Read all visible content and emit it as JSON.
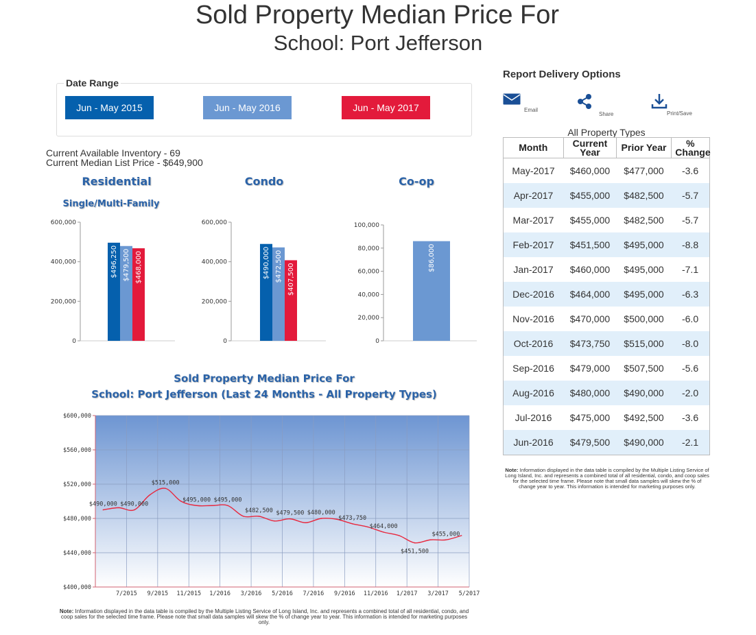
{
  "header": {
    "title": "Sold Property Median Price For",
    "subtitle": "School: Port Jefferson"
  },
  "date_range": {
    "label": "Date Range",
    "buttons": [
      {
        "label": "Jun - May 2015",
        "color": "#0560ad"
      },
      {
        "label": "Jun - May 2016",
        "color": "#6b98d2"
      },
      {
        "label": "Jun - May 2017",
        "color": "#e31a3b"
      }
    ]
  },
  "inventory": {
    "available": "Current Available Inventory - 69",
    "median_list": "Current Median List Price - $649,900"
  },
  "colors": {
    "y2015": "#0560ad",
    "y2016": "#6b98d2",
    "y2017": "#e31a3b",
    "title_blue": "#2b63a8"
  },
  "report_delivery": {
    "title": "Report Delivery Options",
    "options": [
      {
        "label": "Email",
        "icon": "envelope-icon"
      },
      {
        "label": "Share",
        "icon": "share-icon"
      },
      {
        "label": "Print/Save",
        "icon": "download-icon"
      }
    ]
  },
  "table": {
    "caption": "All Property Types",
    "headers": [
      "Month",
      "Current Year",
      "Prior Year",
      "% Change"
    ],
    "rows": [
      [
        "May-2017",
        "$460,000",
        "$477,000",
        "-3.6"
      ],
      [
        "Apr-2017",
        "$455,000",
        "$482,500",
        "-5.7"
      ],
      [
        "Mar-2017",
        "$455,000",
        "$482,500",
        "-5.7"
      ],
      [
        "Feb-2017",
        "$451,500",
        "$495,000",
        "-8.8"
      ],
      [
        "Jan-2017",
        "$460,000",
        "$495,000",
        "-7.1"
      ],
      [
        "Dec-2016",
        "$464,000",
        "$495,000",
        "-6.3"
      ],
      [
        "Nov-2016",
        "$470,000",
        "$500,000",
        "-6.0"
      ],
      [
        "Oct-2016",
        "$473,750",
        "$515,000",
        "-8.0"
      ],
      [
        "Sep-2016",
        "$479,000",
        "$507,500",
        "-5.6"
      ],
      [
        "Aug-2016",
        "$480,000",
        "$490,000",
        "-2.0"
      ],
      [
        "Jul-2016",
        "$475,000",
        "$492,500",
        "-3.6"
      ],
      [
        "Jun-2016",
        "$479,500",
        "$490,000",
        "-2.1"
      ]
    ],
    "note_bold": "Note:",
    "note": "Information displayed in the data table is compiled by the Multiple Listing Service of Long Island, Inc. and represents a combined total of all residential, condo, and coop sales for the selected time frame. Please note that small data samples will skew the % of change year to year.  This information is intended for marketing purposes only."
  },
  "bottom_note": {
    "bold": "Note:",
    "text": "Information displayed in the data table is compiled by the Multiple Listing Service of Long Island, Inc. and represents a combined total of all residential, condo, and coop sales for the selected time frame.  Please note that small data samples will skew the % of change year to year.  This information is intended for marketing purposes only."
  },
  "chart_data": [
    {
      "type": "bar",
      "title": "Residential",
      "subtitle": "Single/Multi-Family",
      "ylim": [
        0,
        600000
      ],
      "ticks": [
        0,
        200000,
        400000,
        600000
      ],
      "tick_labels": [
        "0",
        "200,000",
        "400,000",
        "600,000"
      ],
      "series": [
        {
          "name": "Jun - May 2015",
          "value": 496250,
          "label": "$496,250"
        },
        {
          "name": "Jun - May 2016",
          "value": 479500,
          "label": "$479,500"
        },
        {
          "name": "Jun - May 2017",
          "value": 468000,
          "label": "$468,000"
        }
      ]
    },
    {
      "type": "bar",
      "title": "Condo",
      "subtitle": "",
      "ylim": [
        0,
        600000
      ],
      "ticks": [
        0,
        200000,
        400000,
        600000
      ],
      "tick_labels": [
        "0",
        "200,000",
        "400,000",
        "600,000"
      ],
      "series": [
        {
          "name": "Jun - May 2015",
          "value": 490000,
          "label": "$490,000"
        },
        {
          "name": "Jun - May 2016",
          "value": 472500,
          "label": "$472,500"
        },
        {
          "name": "Jun - May 2017",
          "value": 407500,
          "label": "$407,500"
        }
      ]
    },
    {
      "type": "bar",
      "title": "Co-op",
      "subtitle": "",
      "ylim": [
        0,
        100000
      ],
      "ticks": [
        0,
        20000,
        40000,
        60000,
        80000,
        100000
      ],
      "tick_labels": [
        "0",
        "20,000",
        "40,000",
        "60,000",
        "80,000",
        "100,000"
      ],
      "series": [
        {
          "name": "Jun - May 2016",
          "value": 86000,
          "label": "$86,000"
        }
      ]
    },
    {
      "type": "line",
      "title": "Sold Property Median Price For",
      "subtitle": "School: Port Jefferson (Last 24 Months - All Property Types)",
      "ylim": [
        400000,
        600000
      ],
      "yticks": [
        400000,
        440000,
        480000,
        520000,
        560000,
        600000
      ],
      "ytick_labels": [
        "$400,000",
        "$440,000",
        "$480,000",
        "$520,000",
        "$560,000",
        "$600,000"
      ],
      "xtick_labels": [
        "7/2015",
        "9/2015",
        "11/2015",
        "1/2016",
        "3/2016",
        "5/2016",
        "7/2016",
        "9/2016",
        "11/2016",
        "1/2017",
        "3/2017",
        "5/2017"
      ],
      "x": [
        "6/2015",
        "7/2015",
        "8/2015",
        "9/2015",
        "10/2015",
        "11/2015",
        "12/2015",
        "1/2016",
        "2/2016",
        "3/2016",
        "4/2016",
        "5/2016",
        "6/2016",
        "7/2016",
        "8/2016",
        "9/2016",
        "10/2016",
        "11/2016",
        "12/2016",
        "1/2017",
        "2/2017",
        "3/2017",
        "4/2017",
        "5/2017"
      ],
      "values": [
        490000,
        492500,
        490000,
        507500,
        515000,
        500000,
        495000,
        495000,
        495000,
        482500,
        482500,
        477000,
        479500,
        475000,
        480000,
        479000,
        473750,
        470000,
        464000,
        460000,
        451500,
        455000,
        455000,
        460000
      ],
      "point_labels": [
        {
          "i": 0,
          "text": "$490,000"
        },
        {
          "i": 2,
          "text": "$490,000"
        },
        {
          "i": 4,
          "text": "$515,000"
        },
        {
          "i": 6,
          "text": "$495,000"
        },
        {
          "i": 8,
          "text": "$495,000"
        },
        {
          "i": 10,
          "text": "$482,500"
        },
        {
          "i": 12,
          "text": "$479,500"
        },
        {
          "i": 14,
          "text": "$480,000"
        },
        {
          "i": 16,
          "text": "$473,750"
        },
        {
          "i": 18,
          "text": "$464,000"
        },
        {
          "i": 20,
          "text": "$451,500"
        },
        {
          "i": 22,
          "text": "$455,000"
        }
      ]
    }
  ]
}
